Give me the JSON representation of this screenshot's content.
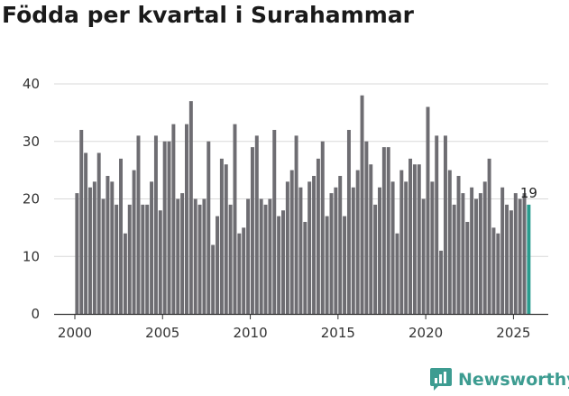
{
  "brand": {
    "name": "Newsworthy",
    "color": "#3d9c91"
  },
  "colors": {
    "bar": "#6e6d72",
    "highlight": "#2a9d8f",
    "grid": "#d9d9d9",
    "axis": "#333333"
  },
  "chart_data": {
    "type": "bar",
    "title": "Födda per kvartal i Surahammar",
    "xlabel": "",
    "ylabel": "",
    "ylim": [
      0,
      40
    ],
    "yticks": [
      0,
      10,
      20,
      30,
      40
    ],
    "xticks": [
      "2000",
      "2005",
      "2010",
      "2015",
      "2020",
      "2025"
    ],
    "start_year": 2000,
    "start_quarter": 1,
    "values": [
      21,
      32,
      28,
      22,
      23,
      28,
      20,
      24,
      23,
      19,
      27,
      14,
      19,
      25,
      31,
      19,
      19,
      23,
      31,
      18,
      30,
      30,
      33,
      20,
      21,
      33,
      37,
      20,
      19,
      20,
      30,
      12,
      17,
      27,
      26,
      19,
      33,
      14,
      15,
      20,
      29,
      31,
      20,
      19,
      20,
      32,
      17,
      18,
      23,
      25,
      31,
      22,
      16,
      23,
      24,
      27,
      30,
      17,
      21,
      22,
      24,
      17,
      32,
      22,
      25,
      38,
      30,
      26,
      19,
      22,
      29,
      29,
      23,
      14,
      25,
      23,
      27,
      26,
      26,
      20,
      36,
      23,
      31,
      11,
      31,
      25,
      19,
      24,
      21,
      16,
      22,
      20,
      21,
      23,
      27,
      15,
      14,
      22,
      19,
      18,
      21,
      20,
      21,
      19
    ],
    "highlight_last": true,
    "last_label": "19"
  }
}
